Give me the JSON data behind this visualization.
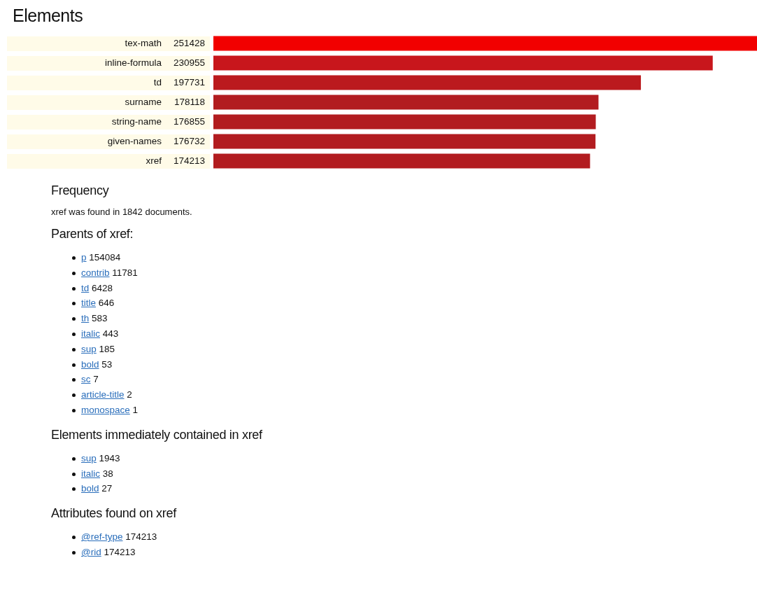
{
  "chart_data": [
    {
      "type": "bar",
      "orientation": "horizontal",
      "title": "Elements",
      "categories": [
        "tex-math",
        "inline-formula",
        "td",
        "surname",
        "string-name",
        "given-names",
        "xref"
      ],
      "values": [
        251428,
        230955,
        197731,
        178118,
        176855,
        176732,
        174213
      ],
      "colors": [
        "#f20000",
        "#c8161c",
        "#bb1a1e",
        "#b21c20",
        "#b21c20",
        "#b21c20",
        "#b21c20"
      ],
      "data_labels": true
    },
    {
      "type": "other",
      "title": "Frequency",
      "annotations": [
        "xref was found in 1842 documents."
      ]
    },
    {
      "type": "other",
      "title": "Parents of xref:",
      "annotations": [
        "p 154084",
        "contrib 11781",
        "td 6428",
        "title 646",
        "th 583",
        "italic 443",
        "sup 185",
        "bold 53",
        "sc 7",
        "article-title 2",
        "monospace 1"
      ]
    },
    {
      "type": "other",
      "title": "Elements immediately contained in xref",
      "annotations": [
        "sup 1943",
        "italic 38",
        "bold 27"
      ]
    },
    {
      "type": "other",
      "title": "Attributes found on xref",
      "annotations": [
        "@ref-type 174213",
        "@rid 174213"
      ]
    }
  ]
}
